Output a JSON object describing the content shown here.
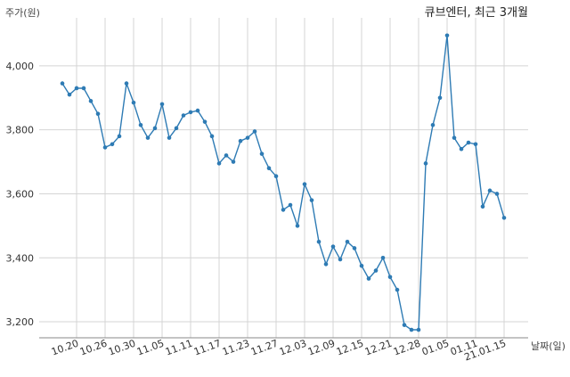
{
  "chart_data": {
    "type": "line",
    "title": "큐브엔터, 최근 3개월",
    "ylabel": "주가(원)",
    "xlabel": "날짜(일)",
    "ylim": [
      3150,
      4150
    ],
    "yticks": [
      3200,
      3400,
      3600,
      3800,
      4000
    ],
    "ytick_labels": [
      "3,200",
      "3,400",
      "3,600",
      "3,800",
      "4,000"
    ],
    "xtick_labels": [
      "10.20",
      "10.26",
      "10.30",
      "11.05",
      "11.11",
      "11.17",
      "11.23",
      "11.27",
      "12.03",
      "12.09",
      "12.15",
      "12.21",
      "12.28",
      "01.05",
      "01.11",
      "21.01.15"
    ],
    "xtick_index": [
      2,
      6,
      10,
      14,
      18,
      22,
      26,
      30,
      34,
      38,
      42,
      46,
      50,
      54,
      58,
      62
    ],
    "grid": true,
    "color": "#2e7bb4",
    "series": [
      {
        "values": [
          3945,
          3910,
          3930,
          3930,
          3890,
          3850,
          3745,
          3755,
          3780,
          3945,
          3885,
          3815,
          3775,
          3805,
          3880,
          3775,
          3805,
          3845,
          3855,
          3860,
          3825,
          3780,
          3695,
          3720,
          3700,
          3765,
          3775,
          3795,
          3725,
          3680,
          3655,
          3550,
          3565,
          3500,
          3630,
          3580,
          3450,
          3380,
          3435,
          3395,
          3450,
          3430,
          3375,
          3335,
          3360,
          3400,
          3340,
          3300,
          3190,
          3175,
          3175,
          3695,
          3815,
          3900,
          4095,
          3775,
          3740,
          3760,
          3755,
          3560,
          3610,
          3600,
          3525
        ]
      }
    ]
  }
}
